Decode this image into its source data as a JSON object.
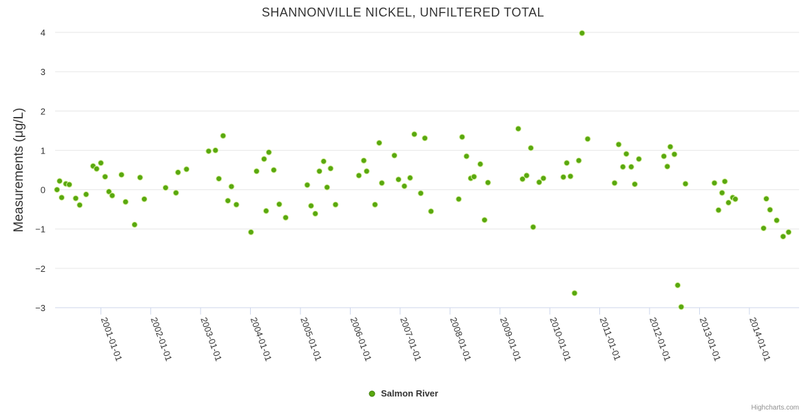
{
  "chart_data": {
    "type": "scatter",
    "title": "SHANNONVILLE NICKEL, UNFILTERED TOTAL",
    "xlabel": "",
    "ylabel": "Measurements (μg/L)",
    "ylim": [
      -3,
      4
    ],
    "yticks": [
      "−3",
      "−2",
      "−1",
      "0",
      "1",
      "2",
      "3",
      "4"
    ],
    "xlim": [
      "2000-02-01",
      "2014-12-31"
    ],
    "xticks": [
      "2001-01-01",
      "2002-01-01",
      "2003-01-01",
      "2004-01-01",
      "2005-01-01",
      "2006-01-01",
      "2007-01-01",
      "2008-01-01",
      "2009-01-01",
      "2010-01-01",
      "2011-01-01",
      "2012-01-01",
      "2013-01-01",
      "2014-01-01"
    ],
    "grid": true,
    "legend_position": "bottom-center",
    "series": [
      {
        "name": "Salmon River",
        "color": "#59a80f",
        "points": [
          [
            "2000-02-15",
            0.0
          ],
          [
            "2000-03-05",
            0.22
          ],
          [
            "2000-03-20",
            -0.2
          ],
          [
            "2000-04-20",
            0.15
          ],
          [
            "2000-05-15",
            0.13
          ],
          [
            "2000-07-01",
            -0.22
          ],
          [
            "2000-07-30",
            -0.39
          ],
          [
            "2000-09-15",
            -0.12
          ],
          [
            "2000-11-05",
            0.6
          ],
          [
            "2000-12-01",
            0.53
          ],
          [
            "2001-01-01",
            0.68
          ],
          [
            "2001-02-01",
            0.33
          ],
          [
            "2001-03-01",
            -0.05
          ],
          [
            "2001-03-25",
            -0.15
          ],
          [
            "2001-06-01",
            0.38
          ],
          [
            "2001-07-01",
            -0.31
          ],
          [
            "2001-09-05",
            -0.89
          ],
          [
            "2001-10-15",
            0.31
          ],
          [
            "2001-11-15",
            -0.24
          ],
          [
            "2002-04-20",
            0.05
          ],
          [
            "2002-07-05",
            -0.08
          ],
          [
            "2002-07-20",
            0.44
          ],
          [
            "2002-09-20",
            0.52
          ],
          [
            "2003-03-01",
            0.98
          ],
          [
            "2003-04-20",
            1.0
          ],
          [
            "2003-05-15",
            0.28
          ],
          [
            "2003-06-15",
            1.37
          ],
          [
            "2003-07-20",
            -0.28
          ],
          [
            "2003-08-15",
            0.08
          ],
          [
            "2003-09-20",
            -0.38
          ],
          [
            "2004-01-05",
            -1.08
          ],
          [
            "2004-02-15",
            0.47
          ],
          [
            "2004-04-10",
            0.78
          ],
          [
            "2004-04-25",
            -0.54
          ],
          [
            "2004-05-15",
            0.95
          ],
          [
            "2004-06-20",
            0.5
          ],
          [
            "2004-07-30",
            -0.37
          ],
          [
            "2004-09-15",
            -0.71
          ],
          [
            "2005-02-20",
            0.12
          ],
          [
            "2005-03-20",
            -0.41
          ],
          [
            "2005-04-20",
            -0.61
          ],
          [
            "2005-05-20",
            0.47
          ],
          [
            "2005-06-20",
            0.72
          ],
          [
            "2005-07-15",
            0.06
          ],
          [
            "2005-08-10",
            0.54
          ],
          [
            "2005-09-15",
            -0.38
          ],
          [
            "2006-03-05",
            0.36
          ],
          [
            "2006-04-10",
            0.74
          ],
          [
            "2006-05-01",
            0.47
          ],
          [
            "2006-07-01",
            -0.38
          ],
          [
            "2006-08-01",
            1.19
          ],
          [
            "2006-08-20",
            0.17
          ],
          [
            "2006-11-20",
            0.87
          ],
          [
            "2006-12-20",
            0.26
          ],
          [
            "2007-02-01",
            0.09
          ],
          [
            "2007-03-15",
            0.3
          ],
          [
            "2007-04-15",
            1.41
          ],
          [
            "2007-06-01",
            -0.09
          ],
          [
            "2007-07-01",
            1.31
          ],
          [
            "2007-08-15",
            -0.55
          ],
          [
            "2008-03-05",
            -0.24
          ],
          [
            "2008-03-30",
            1.34
          ],
          [
            "2008-05-01",
            0.85
          ],
          [
            "2008-06-01",
            0.29
          ],
          [
            "2008-06-25",
            0.33
          ],
          [
            "2008-08-10",
            0.65
          ],
          [
            "2008-09-10",
            -0.77
          ],
          [
            "2008-10-05",
            0.18
          ],
          [
            "2009-05-15",
            1.55
          ],
          [
            "2009-06-15",
            0.27
          ],
          [
            "2009-07-15",
            0.36
          ],
          [
            "2009-08-15",
            1.06
          ],
          [
            "2009-09-01",
            -0.95
          ],
          [
            "2009-10-15",
            0.19
          ],
          [
            "2009-11-15",
            0.29
          ],
          [
            "2010-04-10",
            0.32
          ],
          [
            "2010-05-05",
            0.68
          ],
          [
            "2010-06-01",
            0.34
          ],
          [
            "2010-07-01",
            -2.63
          ],
          [
            "2010-08-01",
            0.74
          ],
          [
            "2010-08-25",
            3.98
          ],
          [
            "2010-10-05",
            1.29
          ],
          [
            "2011-04-20",
            0.17
          ],
          [
            "2011-05-20",
            1.15
          ],
          [
            "2011-06-20",
            0.58
          ],
          [
            "2011-07-15",
            0.91
          ],
          [
            "2011-08-20",
            0.58
          ],
          [
            "2011-09-15",
            0.14
          ],
          [
            "2011-10-15",
            0.78
          ],
          [
            "2012-04-15",
            0.85
          ],
          [
            "2012-05-10",
            0.59
          ],
          [
            "2012-06-01",
            1.09
          ],
          [
            "2012-07-01",
            0.9
          ],
          [
            "2012-07-25",
            -2.43
          ],
          [
            "2012-08-20",
            -2.98
          ],
          [
            "2012-09-20",
            0.15
          ],
          [
            "2013-04-20",
            0.17
          ],
          [
            "2013-05-20",
            -0.52
          ],
          [
            "2013-06-15",
            -0.08
          ],
          [
            "2013-07-05",
            0.21
          ],
          [
            "2013-08-01",
            -0.33
          ],
          [
            "2013-09-01",
            -0.2
          ],
          [
            "2013-09-20",
            -0.24
          ],
          [
            "2014-04-15",
            -0.98
          ],
          [
            "2014-05-05",
            -0.23
          ],
          [
            "2014-06-01",
            -0.51
          ],
          [
            "2014-07-20",
            -0.78
          ],
          [
            "2014-09-05",
            -1.19
          ],
          [
            "2014-10-15",
            -1.08
          ]
        ]
      }
    ]
  },
  "credits": "Highcharts.com"
}
